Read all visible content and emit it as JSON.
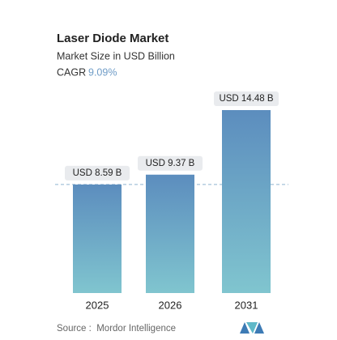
{
  "chart_data": {
    "type": "bar",
    "title": "Laser Diode Market",
    "subtitle": "Market Size in USD Billion",
    "cagr_label": "CAGR",
    "cagr_value": "9.09%",
    "categories": [
      "2025",
      "2026",
      "2031"
    ],
    "values": [
      8.59,
      9.37,
      14.48
    ],
    "value_labels": [
      "USD 8.59 B",
      "USD 9.37 B",
      "USD 14.48 B"
    ],
    "source": "Source :  Mordor Intelligence"
  }
}
